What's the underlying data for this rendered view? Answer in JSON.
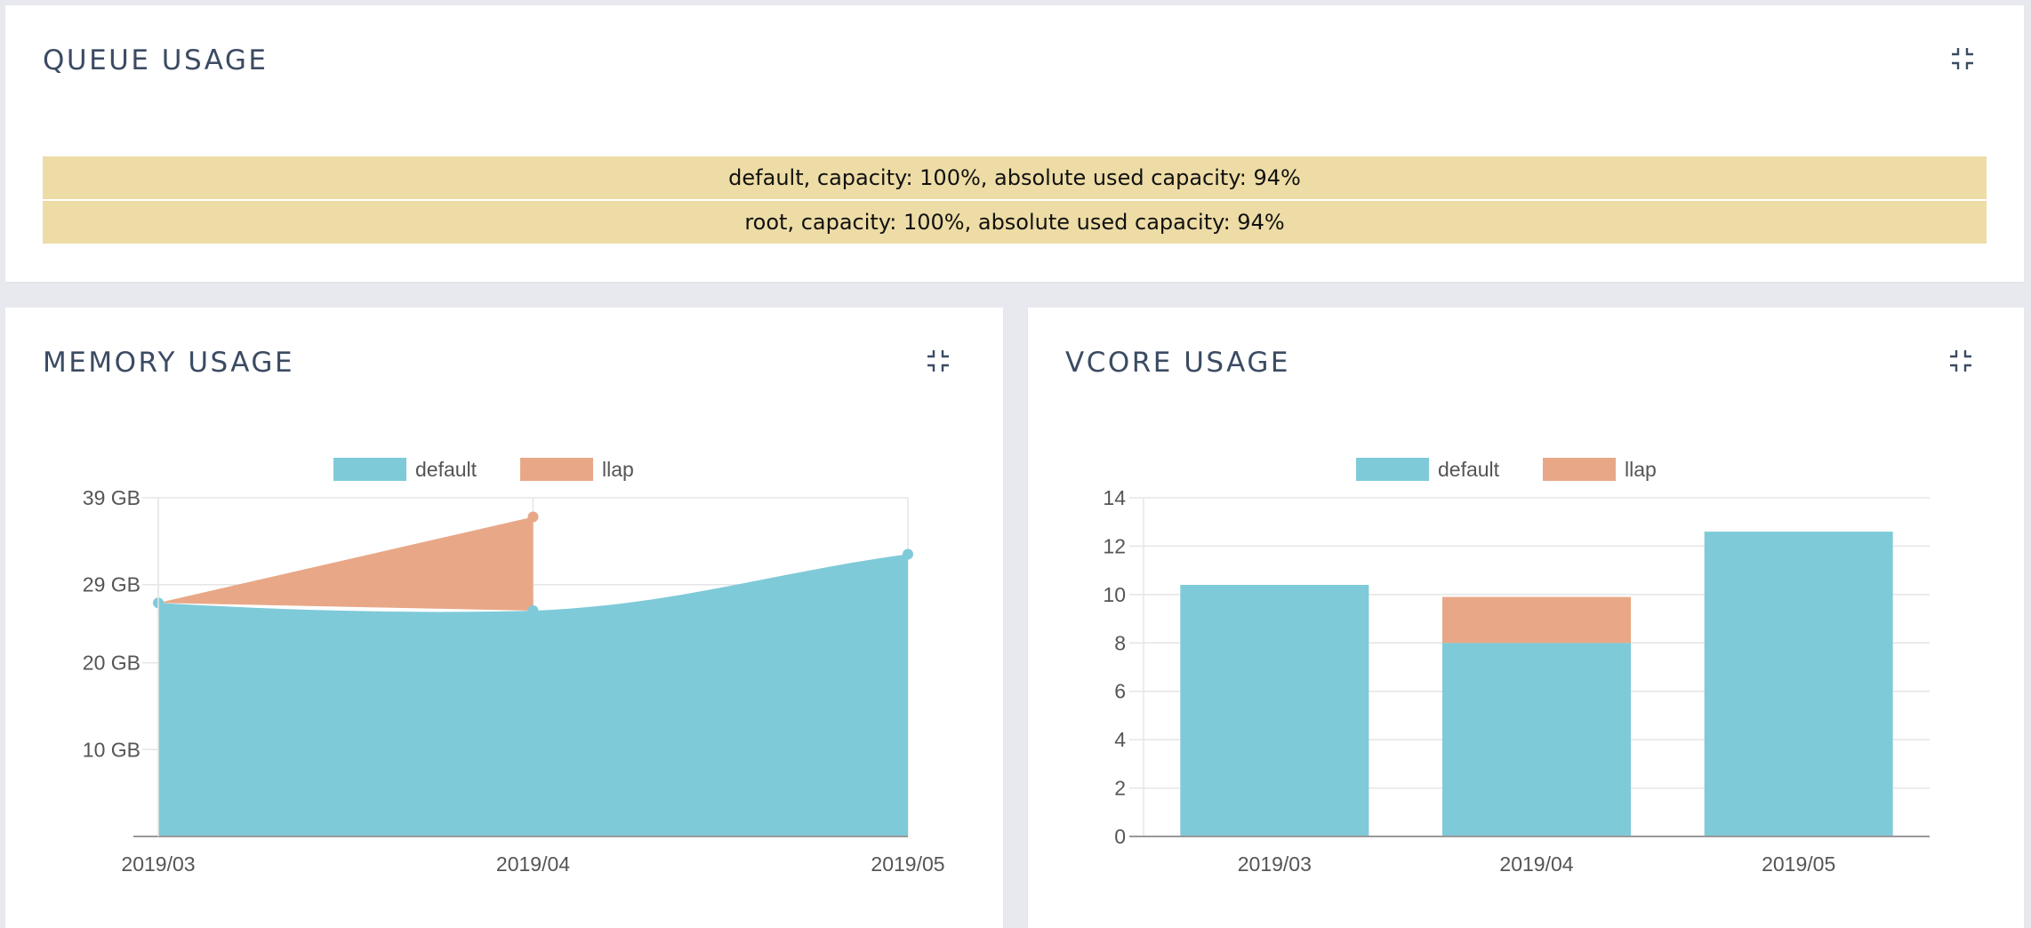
{
  "queue": {
    "title": "QUEUE USAGE",
    "rows": [
      "default, capacity: 100%, absolute used capacity: 94%",
      "root, capacity: 100%, absolute used capacity: 94%"
    ]
  },
  "memory": {
    "title": "MEMORY USAGE"
  },
  "vcore": {
    "title": "VCORE USAGE"
  },
  "icons": {
    "collapse": "collapse-icon"
  },
  "colors": {
    "default": "#7ecad8",
    "llap": "#e8a887",
    "grid": "#e5e5e5",
    "axis": "#999999",
    "tick_text": "#555555",
    "title": "#3b4b63",
    "queue_row": "#eddca5"
  },
  "chart_data": [
    {
      "type": "area",
      "stacked": true,
      "categories": [
        "2019/03",
        "2019/04",
        "2019/05"
      ],
      "series": [
        {
          "name": "default",
          "values": [
            26.9,
            26.0,
            32.5
          ]
        },
        {
          "name": "llap",
          "values": [
            0,
            10.8,
            0
          ]
        }
      ],
      "yticks": [
        10,
        20,
        29,
        39
      ],
      "ytick_labels": [
        "10 GB",
        "20 GB",
        "29 GB",
        "39 GB"
      ],
      "ylim": [
        0,
        39
      ],
      "legend": "top",
      "grid": true
    },
    {
      "type": "bar",
      "stacked": true,
      "categories": [
        "2019/03",
        "2019/04",
        "2019/05"
      ],
      "series": [
        {
          "name": "default",
          "values": [
            10.4,
            8,
            12.6
          ]
        },
        {
          "name": "llap",
          "values": [
            0,
            1.9,
            0
          ]
        }
      ],
      "yticks": [
        0,
        2,
        4,
        6,
        8,
        10,
        12,
        14
      ],
      "ytick_labels": [
        "0",
        "2",
        "4",
        "6",
        "8",
        "10",
        "12",
        "14"
      ],
      "ylim": [
        0,
        14
      ],
      "legend": "top",
      "grid": true
    }
  ]
}
